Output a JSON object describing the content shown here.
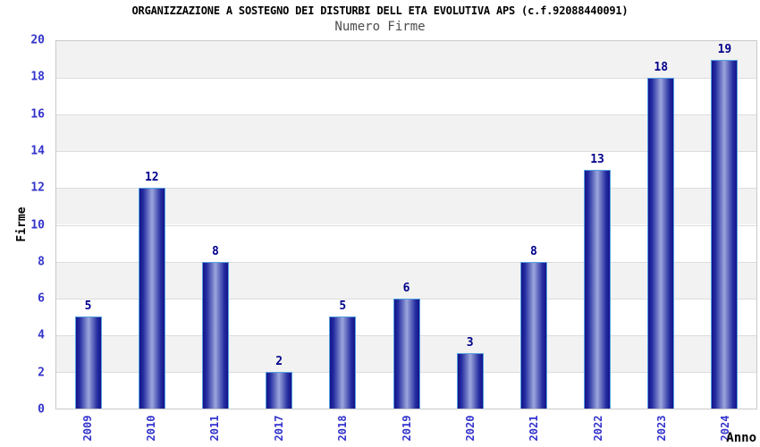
{
  "chart_data": {
    "type": "bar",
    "title": "ORGANIZZAZIONE A SOSTEGNO DEI DISTURBI DELL ETA EVOLUTIVA APS (c.f.92088440091)",
    "subtitle": "Numero Firme",
    "categories": [
      "2009",
      "2010",
      "2011",
      "2017",
      "2018",
      "2019",
      "2020",
      "2021",
      "2022",
      "2023",
      "2024"
    ],
    "values": [
      5,
      12,
      8,
      2,
      5,
      6,
      3,
      8,
      13,
      18,
      19
    ],
    "xlabel": "Anno",
    "ylabel": "Firme",
    "ylim": [
      0,
      20
    ],
    "ytick_step": 2,
    "grid": "horizontal-bands-alternating",
    "legend": "none",
    "colors": {
      "title_color": "#000000",
      "subtitle_color": "#4d4d4d",
      "tick_label": "#3333cc",
      "value_label": "#00008b",
      "axis_title_color": "#000000",
      "band_gray": "#f2f2f2",
      "band_white": "#ffffff",
      "grid_line": "#dcdcdc",
      "plot_border": "#c9c9c9",
      "bar_dark": "#14148a",
      "bar_light": "#9ca6dc",
      "bar_border": "#55a0e0"
    }
  }
}
